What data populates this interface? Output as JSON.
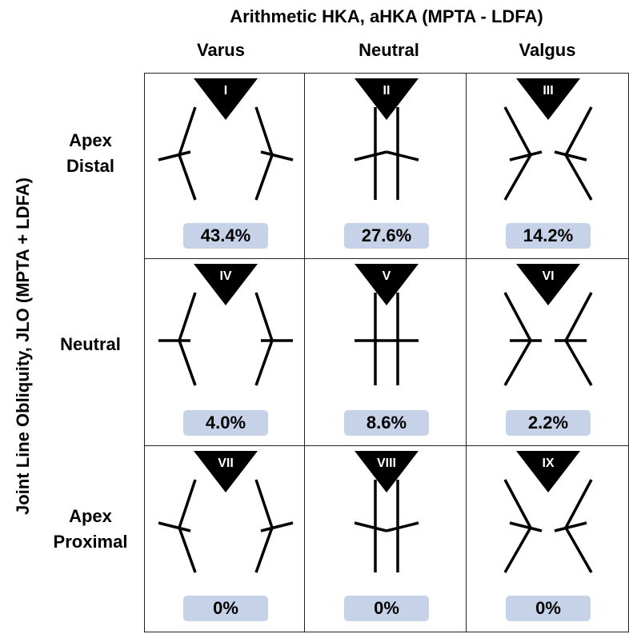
{
  "diagram": {
    "title": "Arithmetic HKA, aHKA (MPTA - LDFA)",
    "y_title": "Joint Line Obliquity, JLO (MPTA + LDFA)",
    "columns": [
      {
        "label": "Varus",
        "alignment": "varus"
      },
      {
        "label": "Neutral",
        "alignment": "neutral"
      },
      {
        "label": "Valgus",
        "alignment": "valgus"
      }
    ],
    "rows": [
      {
        "label_lines": [
          "Apex",
          "Distal"
        ],
        "obliquity": "apex-distal"
      },
      {
        "label_lines": [
          "Neutral"
        ],
        "obliquity": "neutral"
      },
      {
        "label_lines": [
          "Apex",
          "Proximal"
        ],
        "obliquity": "apex-proximal"
      }
    ],
    "cells": [
      [
        {
          "roman": "I",
          "percent": "43.4%"
        },
        {
          "roman": "II",
          "percent": "27.6%"
        },
        {
          "roman": "III",
          "percent": "14.2%"
        }
      ],
      [
        {
          "roman": "IV",
          "percent": "4.0%"
        },
        {
          "roman": "V",
          "percent": "8.6%"
        },
        {
          "roman": "VI",
          "percent": "2.2%"
        }
      ],
      [
        {
          "roman": "VII",
          "percent": "0%"
        },
        {
          "roman": "VIII",
          "percent": "0%"
        },
        {
          "roman": "IX",
          "percent": "0%"
        }
      ]
    ],
    "colors": {
      "triangle": "#000000",
      "badge": "#c6d2e8",
      "line": "#000000"
    }
  }
}
